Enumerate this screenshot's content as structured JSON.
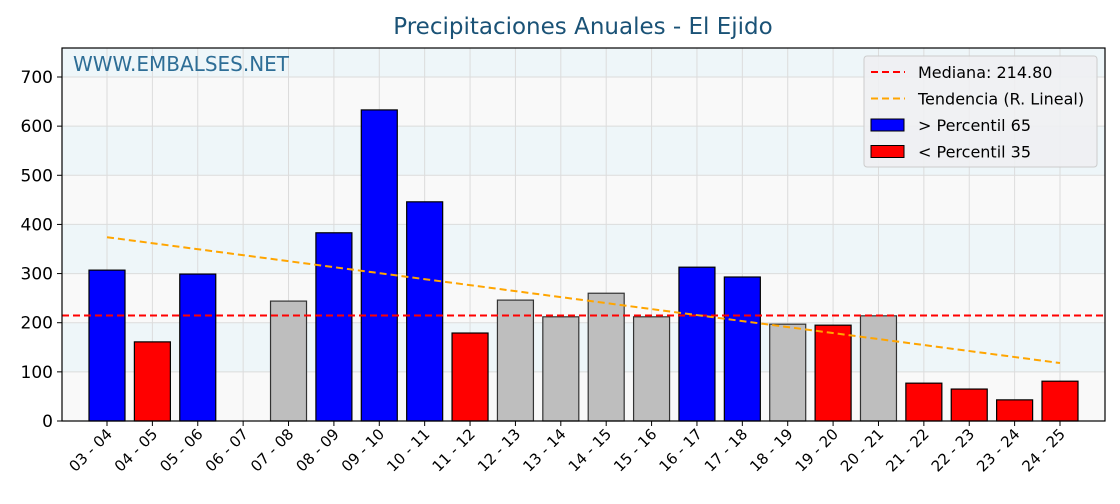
{
  "chart_data": {
    "type": "bar",
    "title": "Precipitaciones Anuales - El Ejido",
    "watermark": "WWW.EMBALSES.NET",
    "xlabel": "",
    "ylabel": "",
    "ylim": [
      0,
      760
    ],
    "yticks": [
      0,
      100,
      200,
      300,
      400,
      500,
      600,
      700
    ],
    "grid": true,
    "categories": [
      "03 - 04",
      "04 - 05",
      "05 - 06",
      "06 - 07",
      "07 - 08",
      "08 - 09",
      "09 - 10",
      "10 - 11",
      "11 - 12",
      "12 - 13",
      "13 - 14",
      "14 - 15",
      "15 - 16",
      "16 - 17",
      "17 - 18",
      "18 - 19",
      "19 - 20",
      "20 - 21",
      "21 - 22",
      "22 - 23",
      "23 - 24",
      "24 - 25"
    ],
    "values": [
      307,
      161,
      299,
      0,
      244,
      383,
      633,
      446,
      179,
      246,
      212,
      260,
      212,
      313,
      293,
      197,
      195,
      214,
      77,
      65,
      43,
      81
    ],
    "classes": [
      "high",
      "low",
      "high",
      "low",
      "mid",
      "high",
      "high",
      "high",
      "low",
      "mid",
      "mid",
      "mid",
      "mid",
      "high",
      "high",
      "mid",
      "low",
      "mid",
      "low",
      "low",
      "low",
      "low"
    ],
    "median": 214.8,
    "trend": {
      "start": 374,
      "end": 118
    },
    "legend": {
      "position": "top-right",
      "items": [
        {
          "label": "Mediana: 214.80",
          "kind": "dash",
          "color": "#ff0000"
        },
        {
          "label": "Tendencia (R. Lineal)",
          "kind": "dash",
          "color": "#ffa500"
        },
        {
          "label": " > Percentil 65",
          "kind": "box",
          "color": "#0000ff"
        },
        {
          "label": " < Percentil 35",
          "kind": "box",
          "color": "#ff0000"
        }
      ]
    },
    "colors": {
      "high": "#0000ff",
      "low": "#ff0000",
      "mid": "#bebebe"
    }
  }
}
